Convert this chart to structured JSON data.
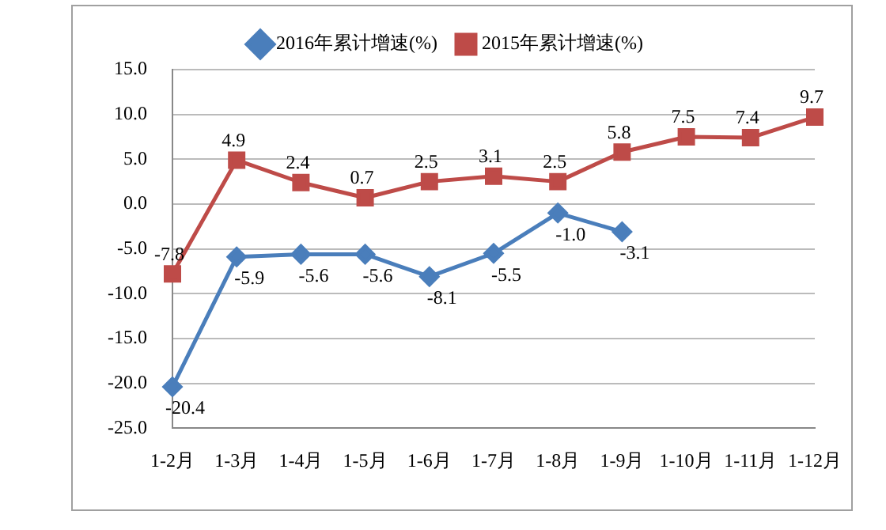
{
  "chart_data": {
    "type": "line",
    "categories": [
      "1-2月",
      "1-3月",
      "1-4月",
      "1-5月",
      "1-6月",
      "1-7月",
      "1-8月",
      "1-9月",
      "1-10月",
      "1-11月",
      "1-12月"
    ],
    "series": [
      {
        "name": "2016年累计增速(%)",
        "color": "#4a7ebb",
        "marker": "diamond",
        "values": [
          -20.4,
          -5.9,
          -5.6,
          -5.6,
          -8.1,
          -5.5,
          -1.0,
          -3.1,
          null,
          null,
          null
        ],
        "value_labels": [
          "-20.4",
          "-5.9",
          "-5.6",
          "-5.6",
          "-8.1",
          "-5.5",
          "-1.0",
          "-3.1",
          null,
          null,
          null
        ]
      },
      {
        "name": "2015年累计增速(%)",
        "color": "#be4b48",
        "marker": "square",
        "values": [
          -7.8,
          4.9,
          2.4,
          0.7,
          2.5,
          3.1,
          2.5,
          5.8,
          7.5,
          7.4,
          9.7
        ],
        "value_labels": [
          "-7.8",
          "4.9",
          "2.4",
          "0.7",
          "2.5",
          "3.1",
          "2.5",
          "5.8",
          "7.5",
          "7.4",
          "9.7"
        ]
      }
    ],
    "ylim": [
      -25,
      15
    ],
    "yticks": [
      {
        "value": -25,
        "label": "-25.0"
      },
      {
        "value": -20,
        "label": "-20.0"
      },
      {
        "value": -15,
        "label": "-15.0"
      },
      {
        "value": -10,
        "label": "-10.0"
      },
      {
        "value": -5,
        "label": "-5.0"
      },
      {
        "value": 0,
        "label": "0.0"
      },
      {
        "value": 5,
        "label": "5.0"
      },
      {
        "value": 10,
        "label": "10.0"
      },
      {
        "value": 15,
        "label": "15.0"
      }
    ],
    "grid": "y",
    "legend": "top",
    "line_style": "solid"
  }
}
